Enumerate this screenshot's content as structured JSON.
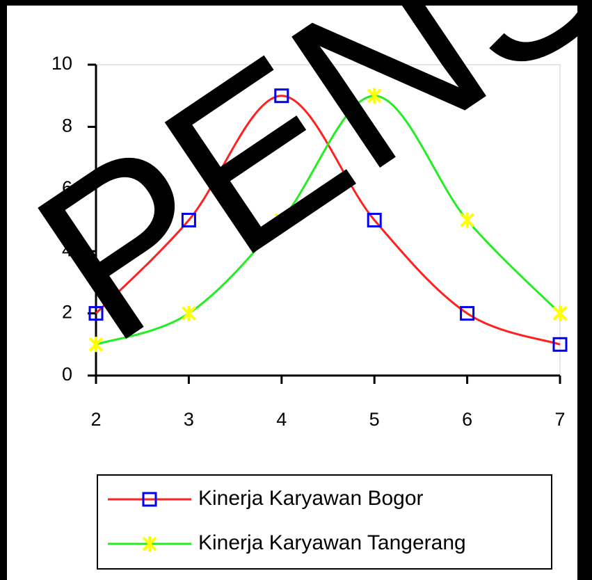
{
  "chart_data": {
    "type": "line",
    "x": [
      2,
      3,
      4,
      5,
      6,
      7
    ],
    "series": [
      {
        "name": "Kinerja Karyawan Bogor",
        "color": "#ff2020",
        "marker": "square",
        "marker_color": "#0000ee",
        "values": [
          2,
          5,
          9,
          5,
          2,
          1
        ]
      },
      {
        "name": "Kinerja Karyawan Tangerang",
        "color": "#22ee22",
        "marker": "star",
        "marker_color": "#ffff00",
        "values": [
          1,
          2,
          5,
          9,
          5,
          2
        ]
      }
    ],
    "xlim": [
      2,
      7
    ],
    "xticks": [
      2,
      3,
      4,
      5,
      6,
      7
    ],
    "ylim": [
      0,
      10
    ],
    "yticks": [
      0,
      2,
      4,
      6,
      8,
      10
    ],
    "smooth": true,
    "legend": "bottom",
    "watermark": "PENS"
  }
}
